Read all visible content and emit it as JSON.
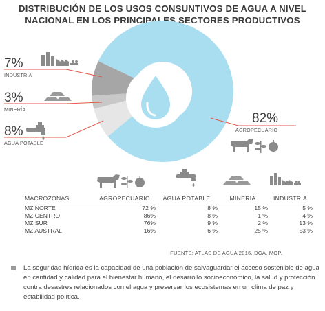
{
  "title_line1": "DISTRIBUCIÓN DE LOS USOS CONSUNTIVOS DE AGUA A NIVEL",
  "title_line2": "NACIONAL EN LOS PRINCIPALES SECTORES PRODUCTIVOS",
  "colors": {
    "agro": "#a9def0",
    "industria": "#e6e6e6",
    "mineria": "#c8c8c8",
    "agua": "#a6a6a6",
    "leader": "#e0584b",
    "icon": "#8a8a8a"
  },
  "chart_data": {
    "type": "pie",
    "donut": true,
    "slices": [
      {
        "label": "AGROPECUARIO",
        "value": 82
      },
      {
        "label": "INDUSTRIA",
        "value": 7
      },
      {
        "label": "MINERÍA",
        "value": 3
      },
      {
        "label": "AGUA POTABLE",
        "value": 8
      }
    ],
    "value_labels": [
      "82%",
      "7%",
      "3%",
      "8%"
    ]
  },
  "table": {
    "headers": [
      "MACROZONAS",
      "AGROPECUARIO",
      "AGUA POTABLE",
      "MINERÍA",
      "INDUSTRIA"
    ],
    "rows": [
      [
        "MZ NORTE",
        "72 %",
        "8 %",
        "15 %",
        "5 %"
      ],
      [
        "MZ CENTRO",
        "86%",
        "8 %",
        "1 %",
        "4 %"
      ],
      [
        "MZ SUR",
        "76%",
        "9 %",
        "2 %",
        "13 %"
      ],
      [
        "MZ AUSTRAL",
        "16%",
        "6 %",
        "25 %",
        "53 %"
      ]
    ]
  },
  "source": "FUENTE: ATLAS DE AGUA 2016. DGA, MOP.",
  "note": "La seguridad hídrica es la capacidad de una población de salvaguardar el acceso sostenible de agua en cantidad y calidad para el bienestar humano, el desarrollo socioeconómico, la salud y protección contra desastres relacionados con el agua y preservar los ecosistemas en un clima de paz y estabilidad política.",
  "icons": [
    "factory-icon",
    "gold-bars-icon",
    "faucet-icon",
    "water-drop-icon",
    "cow-icon",
    "plant-icon",
    "apple-icon"
  ]
}
